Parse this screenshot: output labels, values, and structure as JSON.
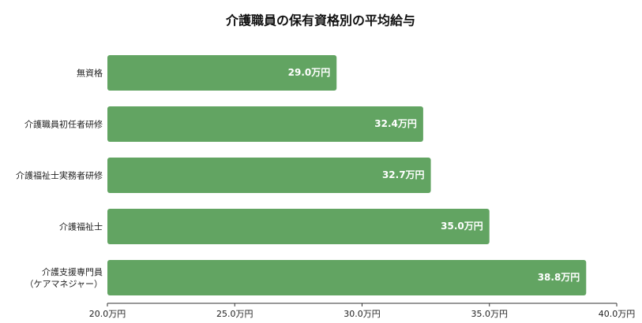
{
  "chart_data": {
    "type": "bar",
    "orientation": "horizontal",
    "title": "介護職員の保有資格別の平均給与",
    "categories": [
      "無資格",
      "介護職員初任者研修",
      "介護福祉士実務者研修",
      "介護福祉士",
      "介護支援専門員\n（ケアマネジャー）"
    ],
    "values": [
      29.0,
      32.4,
      32.7,
      35.0,
      38.8
    ],
    "value_labels": [
      "29.0万円",
      "32.4万円",
      "32.7万円",
      "35.0万円",
      "38.8万円"
    ],
    "color": "#62a462",
    "xlim": [
      20,
      40
    ],
    "xticks": [
      {
        "value": 20,
        "label": "20.0万円"
      },
      {
        "value": 25,
        "label": "25.0万円"
      },
      {
        "value": 30,
        "label": "30.0万円"
      },
      {
        "value": 35,
        "label": "35.0万円"
      },
      {
        "value": 40,
        "label": "40.0万円"
      }
    ],
    "grid": false
  }
}
